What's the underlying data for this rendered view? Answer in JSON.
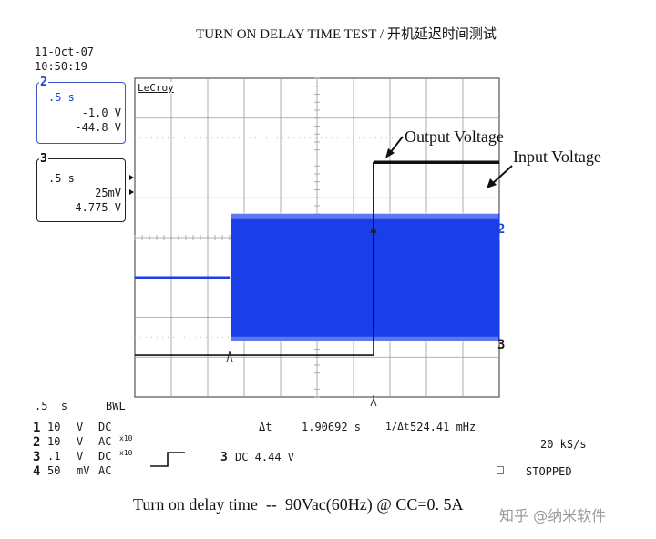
{
  "title": "TURN ON DELAY TIME TEST / 开机延迟时间测试",
  "bottom_caption": "Turn on delay time  --  90Vac(60Hz) @ CC=0. 5A",
  "watermark": "知乎 @纳米软件",
  "scope": {
    "brand": "LeCroy",
    "date": "11-Oct-07",
    "time": "10:50:19",
    "ch2_box": {
      "num": "2",
      "timebase": ".5 s",
      "scale": "-1.0 V",
      "offset": "-44.8 V"
    },
    "ch3_box": {
      "num": "3",
      "timebase": ".5 s",
      "scale": "25mV",
      "offset": "4.775 V"
    },
    "right_markers": {
      "ch2": "2",
      "ch3": "3"
    },
    "bottom": {
      "timebase": ".5  s",
      "bwl": "BWL",
      "channels": [
        {
          "num": "1",
          "volts": "10",
          "unit": "V",
          "coupling": "DC",
          "extra": ""
        },
        {
          "num": "2",
          "volts": "10",
          "unit": "V",
          "coupling": "AC",
          "extra": "x10"
        },
        {
          "num": "3",
          "volts": ".1",
          "unit": "V",
          "coupling": "DC",
          "extra": "x10"
        },
        {
          "num": "4",
          "volts": "50",
          "unit": "mV",
          "coupling": "AC",
          "extra": ""
        }
      ],
      "delta_t_label": "Δt",
      "delta_t_value": "1.90692 s",
      "inv_label": "1/Δt",
      "inv_value": "524.41 mHz",
      "trigger_ch": "3",
      "trigger_text": "DC 4.44 V",
      "sample_rate": "20 kS/s",
      "status": "STOPPED"
    },
    "colors": {
      "ch2": "#1a3ee8",
      "ch3": "#111111",
      "grid": "#9a9a9a"
    }
  },
  "chart_data": {
    "type": "line",
    "title": "TURN ON DELAY TIME TEST / 开机延迟时间测试",
    "xlabel": "",
    "ylabel": "",
    "x_units": "s",
    "timebase_per_div": 0.5,
    "grid": true,
    "annotations": [
      "Output Voltage",
      "Input Voltage"
    ],
    "delta_t_s": 1.90692,
    "series": [
      {
        "name": "2",
        "description_color": "#1a3ee8",
        "points": [
          [
            0,
            0
          ],
          [
            1.3,
            0
          ],
          [
            1.35,
            1
          ],
          [
            5.0,
            1
          ]
        ],
        "envelope_divisions": [
          2.5,
          2.5
        ]
      },
      {
        "name": "3",
        "description_color": "#111111",
        "points": [
          [
            0,
            0
          ],
          [
            3.2,
            0
          ],
          [
            3.22,
            1
          ],
          [
            5.0,
            1
          ]
        ]
      }
    ]
  }
}
